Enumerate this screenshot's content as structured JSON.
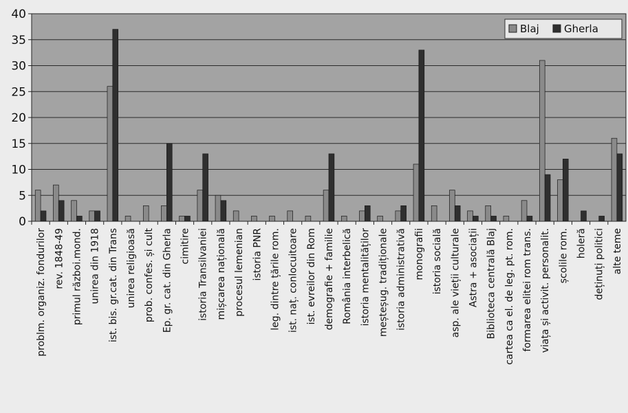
{
  "chart_data": {
    "type": "bar",
    "title": "",
    "xlabel": "",
    "ylabel": "",
    "ylim": [
      0,
      40
    ],
    "yticks": [
      0,
      5,
      10,
      15,
      20,
      25,
      30,
      35,
      40
    ],
    "grid": true,
    "legend": "top-right",
    "categories": [
      "problm. organiz. fondurilor",
      "rev. 1848-49",
      "primul război.mond.",
      "unirea din 1918",
      "ist. bis. gr.cat. din Trans",
      "unirea religioasă",
      "prob. confes. și cult",
      "Ep. gr. cat. din Gherla",
      "cimitire",
      "istoria Transilvaniei",
      "mișcarea națională",
      "procesul lemenian",
      "istoria PNR",
      "leg. dintre țările rom.",
      "ist. naț. conlocuitoare",
      "ist. evreilor din Rom",
      "demografie + familie",
      "România interbelică",
      "istoria mentalităților",
      "meșteșug. tradiționale",
      "istoria administrativă",
      "monografii",
      "istoria socială",
      "asp. ale vieții culturale",
      "Astra + asociații",
      "Biblioteca centrală Blaj",
      "cartea ca el. de leg. pt. rom.",
      "formarea elitei rom trans.",
      "viața și activit. personalit.",
      "școlile rom.",
      "holeră",
      "deținuți politici",
      "alte teme"
    ],
    "series": [
      {
        "name": "Blaj",
        "color": "#8a8a8a",
        "values": [
          6,
          7,
          4,
          2,
          26,
          1,
          3,
          3,
          1,
          6,
          5,
          2,
          1,
          1,
          2,
          1,
          6,
          1,
          2,
          1,
          2,
          11,
          3,
          6,
          2,
          3,
          1,
          4,
          31,
          8,
          0,
          0,
          16
        ]
      },
      {
        "name": "Gherla",
        "color": "#2f2f2f",
        "values": [
          2,
          4,
          1,
          2,
          37,
          0,
          0,
          15,
          1,
          13,
          4,
          0,
          0,
          0,
          0,
          0,
          13,
          0,
          3,
          0,
          3,
          33,
          0,
          3,
          1,
          1,
          0,
          1,
          9,
          12,
          2,
          1,
          13
        ]
      }
    ]
  }
}
